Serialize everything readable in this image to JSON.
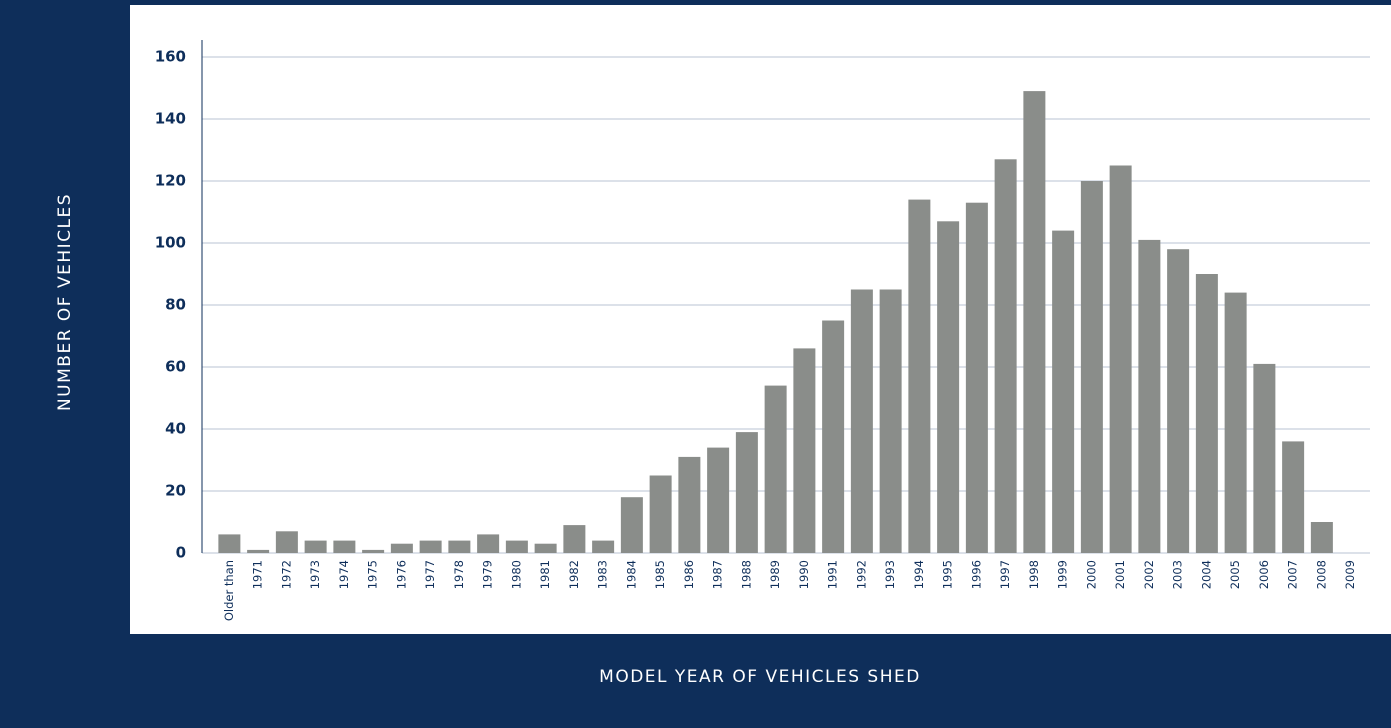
{
  "chart_data": {
    "type": "bar",
    "xlabel": "MODEL YEAR OF VEHICLES SHED",
    "ylabel": "NUMBER OF VEHICLES",
    "categories": [
      "Older than",
      "1971",
      "1972",
      "1973",
      "1974",
      "1975",
      "1976",
      "1977",
      "1978",
      "1979",
      "1980",
      "1981",
      "1982",
      "1983",
      "1984",
      "1985",
      "1986",
      "1987",
      "1988",
      "1989",
      "1990",
      "1991",
      "1992",
      "1993",
      "1994",
      "1995",
      "1996",
      "1997",
      "1998",
      "1999",
      "2000",
      "2001",
      "2002",
      "2003",
      "2004",
      "2005",
      "2006",
      "2007",
      "2008",
      "2009"
    ],
    "values": [
      6,
      1,
      7,
      4,
      4,
      1,
      3,
      4,
      4,
      6,
      4,
      3,
      9,
      4,
      18,
      25,
      31,
      34,
      39,
      54,
      66,
      75,
      85,
      85,
      114,
      107,
      113,
      127,
      149,
      104,
      120,
      125,
      101,
      98,
      90,
      84,
      61,
      36,
      10,
      0
    ],
    "color": "#8a8d8a",
    "ylim": [
      0,
      160
    ],
    "yticks": [
      0,
      20,
      40,
      60,
      80,
      100,
      120,
      140,
      160
    ],
    "grid": true
  }
}
